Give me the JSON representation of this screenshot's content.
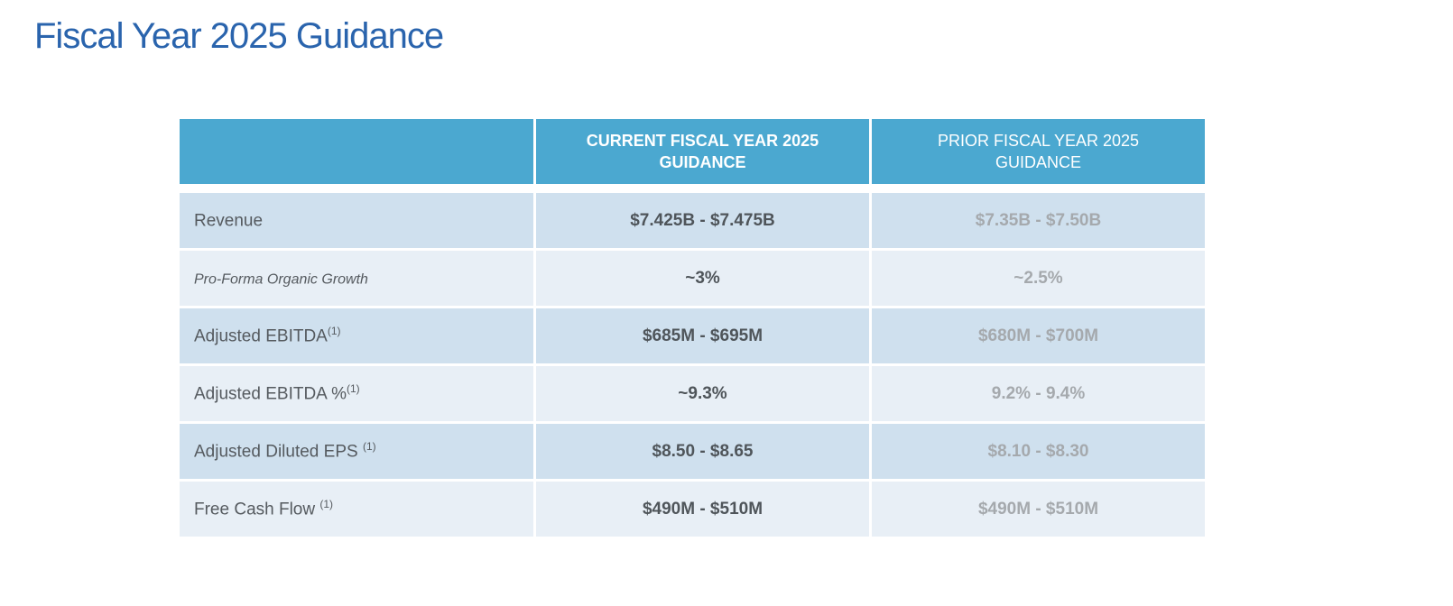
{
  "title": "Fiscal Year 2025 Guidance",
  "table": {
    "headers": [
      "",
      "CURRENT FISCAL YEAR 2025 GUIDANCE",
      "PRIOR FISCAL YEAR 2025 GUIDANCE"
    ],
    "rows": [
      {
        "label": "Revenue",
        "note": "",
        "current": "$7.425B - $7.475B",
        "prior": "$7.35B - $7.50B"
      },
      {
        "label": "Pro-Forma Organic Growth",
        "note": "",
        "current": "~3%",
        "prior": "~2.5%"
      },
      {
        "label": "Adjusted EBITDA",
        "note": "(1)",
        "current": "$685M - $695M",
        "prior": "$680M - $700M"
      },
      {
        "label": "Adjusted EBITDA %",
        "note": "(1)",
        "current": "~9.3%",
        "prior": "9.2% - 9.4%"
      },
      {
        "label": "Adjusted Diluted EPS ",
        "note": "(1)",
        "current": "$8.50 - $8.65",
        "prior": "$8.10 - $8.30"
      },
      {
        "label": "Free Cash Flow ",
        "note": "(1)",
        "current": "$490M - $510M",
        "prior": "$490M - $510M"
      }
    ]
  },
  "colors": {
    "title": "#2a64ad",
    "header": "#4ba8d0",
    "row_dark": "#cfe0ee",
    "row_light": "#e8eff6"
  }
}
